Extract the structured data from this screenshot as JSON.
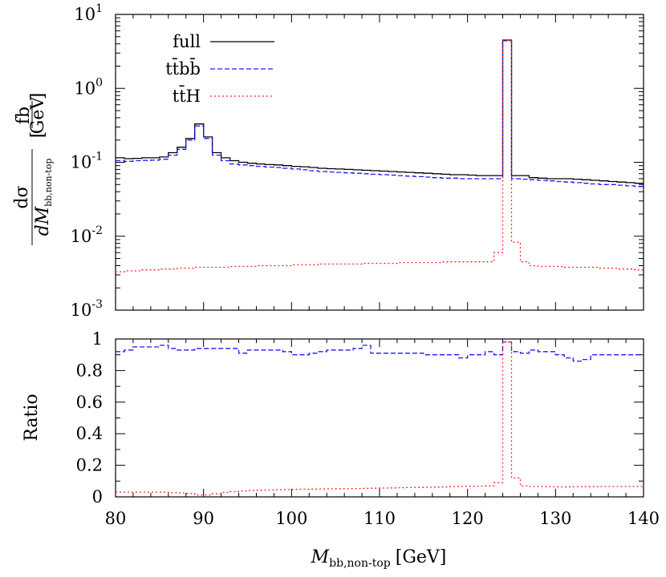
{
  "chart_data": [
    {
      "type": "line",
      "panel": "top",
      "yscale": "log",
      "ylim": [
        0.001,
        10
      ],
      "xlim": [
        80,
        140
      ],
      "ylabel": "dσ / dM_bb,non-top [fb/GeV]",
      "ylabel_parts": {
        "num": "dσ",
        "den": "dM",
        "den_sub": "bb,non-top",
        "unit_num": "fb",
        "unit_den": "GeV"
      },
      "yticks": [
        {
          "base": "10",
          "exp": "-3",
          "value": 0.001
        },
        {
          "base": "10",
          "exp": "-2",
          "value": 0.01
        },
        {
          "base": "10",
          "exp": "-1",
          "value": 0.1
        },
        {
          "base": "10",
          "exp": "0",
          "value": 1
        },
        {
          "base": "10",
          "exp": "1",
          "value": 10
        }
      ],
      "bin_edges": [
        80,
        81,
        82,
        83,
        84,
        85,
        86,
        87,
        88,
        89,
        90,
        91,
        92,
        93,
        94,
        95,
        96,
        97,
        98,
        99,
        100,
        101,
        102,
        103,
        104,
        105,
        106,
        107,
        108,
        109,
        110,
        111,
        112,
        113,
        114,
        115,
        116,
        117,
        118,
        119,
        120,
        121,
        122,
        123,
        124,
        125,
        126,
        127,
        128,
        129,
        130,
        131,
        132,
        133,
        134,
        135,
        136,
        137,
        138,
        139,
        140
      ],
      "legend": [
        {
          "label": "full",
          "color": "#000000",
          "dash": ""
        },
        {
          "label": "tt̄bb̄",
          "color": "#1a1aff",
          "dash": "6,3"
        },
        {
          "label": "tt̄H",
          "color": "#ff2222",
          "dash": "2,3"
        }
      ],
      "series": [
        {
          "name": "full",
          "color": "#000000",
          "values": [
            0.115,
            0.112,
            0.113,
            0.115,
            0.115,
            0.118,
            0.135,
            0.16,
            0.21,
            0.33,
            0.22,
            0.135,
            0.115,
            0.105,
            0.1,
            0.097,
            0.095,
            0.093,
            0.092,
            0.09,
            0.088,
            0.087,
            0.085,
            0.083,
            0.082,
            0.081,
            0.08,
            0.079,
            0.078,
            0.077,
            0.076,
            0.075,
            0.074,
            0.073,
            0.072,
            0.071,
            0.07,
            0.069,
            0.068,
            0.068,
            0.067,
            0.066,
            0.066,
            0.066,
            4.5,
            0.066,
            0.066,
            0.062,
            0.061,
            0.06,
            0.06,
            0.06,
            0.059,
            0.058,
            0.057,
            0.056,
            0.055,
            0.054,
            0.053,
            0.052
          ]
        },
        {
          "name": "tt̄bb̄",
          "color": "#1a1aff",
          "values": [
            0.105,
            0.103,
            0.105,
            0.106,
            0.107,
            0.11,
            0.125,
            0.15,
            0.2,
            0.31,
            0.21,
            0.125,
            0.105,
            0.095,
            0.092,
            0.09,
            0.088,
            0.086,
            0.085,
            0.083,
            0.081,
            0.079,
            0.077,
            0.075,
            0.074,
            0.073,
            0.072,
            0.071,
            0.07,
            0.069,
            0.068,
            0.067,
            0.066,
            0.065,
            0.064,
            0.063,
            0.062,
            0.061,
            0.061,
            0.06,
            0.06,
            0.06,
            0.06,
            0.06,
            4.4,
            0.06,
            0.059,
            0.058,
            0.057,
            0.056,
            0.055,
            0.054,
            0.053,
            0.052,
            0.051,
            0.05,
            0.05,
            0.049,
            0.048,
            0.047
          ]
        },
        {
          "name": "tt̄H",
          "color": "#ff2222",
          "values": [
            0.0033,
            0.0034,
            0.0034,
            0.0035,
            0.0035,
            0.0036,
            0.0036,
            0.0037,
            0.0037,
            0.0038,
            0.0038,
            0.0038,
            0.0038,
            0.0039,
            0.0039,
            0.0039,
            0.004,
            0.004,
            0.004,
            0.004,
            0.0041,
            0.0041,
            0.0041,
            0.0042,
            0.0042,
            0.0042,
            0.0042,
            0.0042,
            0.0043,
            0.0043,
            0.0043,
            0.0043,
            0.0044,
            0.0044,
            0.0044,
            0.0044,
            0.0044,
            0.0045,
            0.0045,
            0.0045,
            0.0045,
            0.0045,
            0.0045,
            0.006,
            4.4,
            0.0083,
            0.0045,
            0.004,
            0.0039,
            0.0039,
            0.0039,
            0.0038,
            0.0038,
            0.0038,
            0.0038,
            0.0037,
            0.0037,
            0.0036,
            0.0036,
            0.0035
          ]
        }
      ]
    },
    {
      "type": "line",
      "panel": "bottom",
      "ylabel": "Ratio",
      "ylim": [
        0,
        1
      ],
      "xlim": [
        80,
        140
      ],
      "xlabel_main": "M",
      "xlabel_sub": "bb,non-top",
      "xlabel_unit": "[GeV]",
      "xticks": [
        "80",
        "90",
        "100",
        "110",
        "120",
        "130",
        "140"
      ],
      "yticks": [
        "0",
        "0.2",
        "0.4",
        "0.6",
        "0.8",
        "1"
      ],
      "bin_edges": [
        80,
        81,
        82,
        83,
        84,
        85,
        86,
        87,
        88,
        89,
        90,
        91,
        92,
        93,
        94,
        95,
        96,
        97,
        98,
        99,
        100,
        101,
        102,
        103,
        104,
        105,
        106,
        107,
        108,
        109,
        110,
        111,
        112,
        113,
        114,
        115,
        116,
        117,
        118,
        119,
        120,
        121,
        122,
        123,
        124,
        125,
        126,
        127,
        128,
        129,
        130,
        131,
        132,
        133,
        134,
        135,
        136,
        137,
        138,
        139,
        140
      ],
      "series": [
        {
          "name": "tt̄bb̄",
          "color": "#1a1aff",
          "values": [
            0.92,
            0.93,
            0.95,
            0.95,
            0.95,
            0.96,
            0.94,
            0.93,
            0.93,
            0.94,
            0.94,
            0.94,
            0.94,
            0.94,
            0.91,
            0.93,
            0.93,
            0.93,
            0.93,
            0.92,
            0.9,
            0.9,
            0.91,
            0.92,
            0.93,
            0.93,
            0.93,
            0.94,
            0.96,
            0.91,
            0.91,
            0.91,
            0.91,
            0.91,
            0.91,
            0.9,
            0.9,
            0.9,
            0.9,
            0.88,
            0.9,
            0.9,
            0.92,
            0.9,
            0.98,
            0.92,
            0.91,
            0.93,
            0.92,
            0.92,
            0.9,
            0.88,
            0.86,
            0.87,
            0.9,
            0.9,
            0.9,
            0.9,
            0.9,
            0.9
          ]
        },
        {
          "name": "tt̄H",
          "color": "#ff2222",
          "values": [
            0.03,
            0.03,
            0.03,
            0.03,
            0.03,
            0.03,
            0.027,
            0.025,
            0.022,
            0.012,
            0.012,
            0.02,
            0.028,
            0.033,
            0.037,
            0.04,
            0.042,
            0.043,
            0.045,
            0.046,
            0.047,
            0.048,
            0.049,
            0.05,
            0.051,
            0.052,
            0.052,
            0.053,
            0.054,
            0.055,
            0.056,
            0.057,
            0.058,
            0.059,
            0.06,
            0.061,
            0.062,
            0.063,
            0.065,
            0.066,
            0.067,
            0.068,
            0.069,
            0.09,
            0.98,
            0.12,
            0.069,
            0.066,
            0.065,
            0.064,
            0.063,
            0.063,
            0.064,
            0.065,
            0.065,
            0.066,
            0.066,
            0.066,
            0.066,
            0.066
          ]
        }
      ]
    }
  ]
}
